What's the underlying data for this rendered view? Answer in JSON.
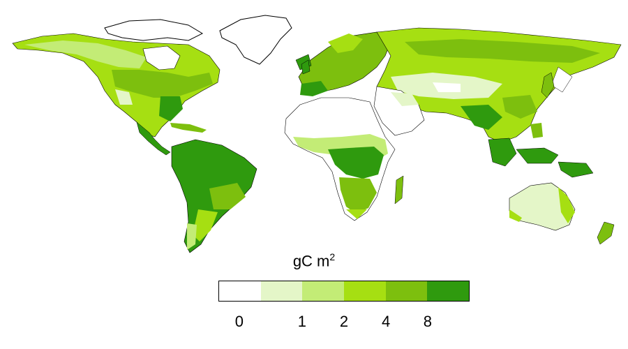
{
  "legend": {
    "title_text": "gC m",
    "title_sup": "2",
    "bins": [
      {
        "color": "#ffffff"
      },
      {
        "color": "#e4f6c8"
      },
      {
        "color": "#c3ec76"
      },
      {
        "color": "#a6df12"
      },
      {
        "color": "#7dbf0e"
      },
      {
        "color": "#2f9a0e"
      }
    ],
    "tick_labels": [
      "0",
      "1",
      "2",
      "4",
      "8"
    ],
    "tick_positions": [
      0.083,
      0.333,
      0.5,
      0.667,
      0.833
    ]
  },
  "colors": {
    "ocean": "#ffffff",
    "coastline": "#000000"
  }
}
